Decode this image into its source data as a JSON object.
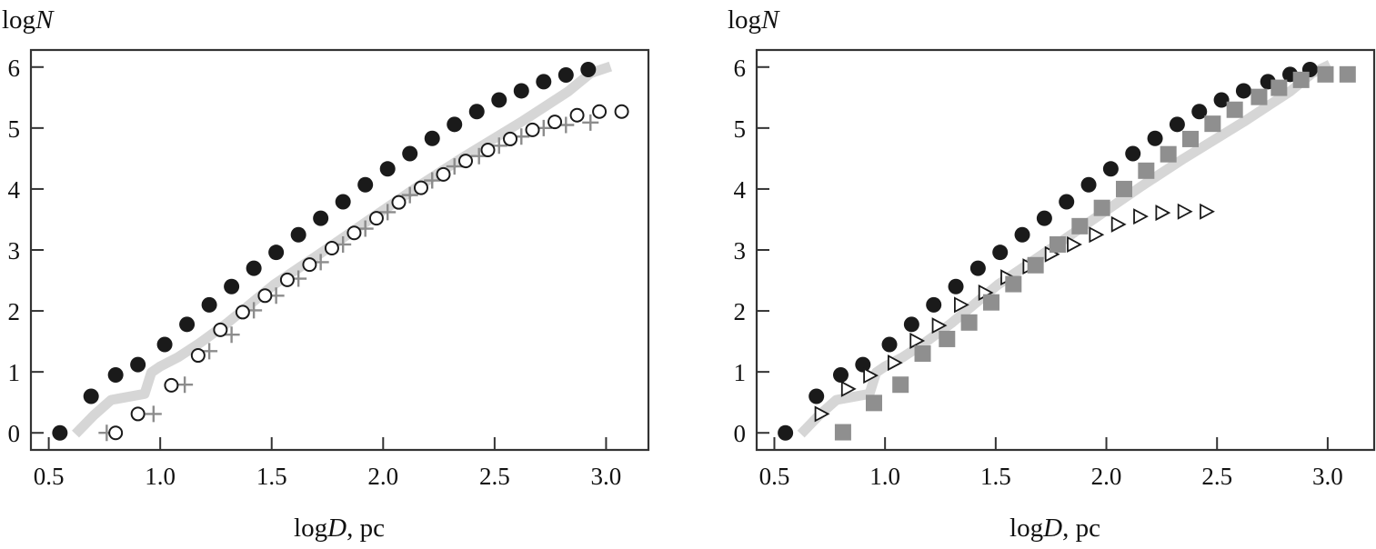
{
  "chart_data": [
    {
      "type": "scatter",
      "panel": "left",
      "title": "",
      "xlabel": {
        "prefix": "log",
        "var": "D",
        "suffix": ", pc"
      },
      "ylabel": {
        "prefix": "log",
        "var": "N"
      },
      "xlim": [
        0.42,
        3.19
      ],
      "ylim": [
        -0.28,
        6.28
      ],
      "xticks": [
        0.5,
        1.0,
        1.5,
        2.0,
        2.5,
        3.0
      ],
      "xtick_labels": [
        "0.5",
        "1.0",
        "1.5",
        "2.0",
        "2.5",
        "3.0"
      ],
      "yticks": [
        0,
        1,
        2,
        3,
        4,
        5,
        6
      ],
      "ytick_labels": [
        "0",
        "1",
        "2",
        "3",
        "4",
        "5",
        "6"
      ],
      "grid": false,
      "legend": "none",
      "series": [
        {
          "name": "reference-curve",
          "marker": "line",
          "color": "#d6d6d6",
          "x": [
            0.62,
            0.7,
            0.78,
            0.93,
            0.96,
            1.0,
            1.08,
            1.18,
            1.3,
            1.51,
            1.72,
            1.92,
            2.16,
            2.35,
            2.62,
            2.83,
            2.93,
            3.02
          ],
          "y": [
            -0.02,
            0.28,
            0.54,
            0.64,
            0.99,
            1.09,
            1.24,
            1.48,
            1.8,
            2.43,
            2.95,
            3.45,
            4.05,
            4.5,
            5.1,
            5.6,
            5.9,
            6.01
          ]
        },
        {
          "name": "filled-circles",
          "marker": "filled-circle",
          "color": "#1a1a1a",
          "x": [
            0.55,
            0.69,
            0.8,
            0.9,
            1.02,
            1.12,
            1.22,
            1.32,
            1.42,
            1.52,
            1.62,
            1.72,
            1.82,
            1.92,
            2.02,
            2.12,
            2.22,
            2.32,
            2.42,
            2.52,
            2.62,
            2.72,
            2.82,
            2.92
          ],
          "y": [
            0.0,
            0.6,
            0.95,
            1.12,
            1.45,
            1.78,
            2.1,
            2.4,
            2.7,
            2.96,
            3.25,
            3.52,
            3.79,
            4.07,
            4.33,
            4.58,
            4.83,
            5.06,
            5.27,
            5.46,
            5.61,
            5.76,
            5.87,
            5.96
          ]
        },
        {
          "name": "open-circles",
          "marker": "open-circle",
          "color": "#1a1a1a",
          "x": [
            0.8,
            0.9,
            1.05,
            1.17,
            1.27,
            1.37,
            1.47,
            1.57,
            1.67,
            1.77,
            1.87,
            1.97,
            2.07,
            2.17,
            2.27,
            2.37,
            2.47,
            2.57,
            2.67,
            2.77,
            2.87,
            2.97,
            3.07
          ],
          "y": [
            0.0,
            0.31,
            0.78,
            1.27,
            1.69,
            1.98,
            2.25,
            2.51,
            2.76,
            3.03,
            3.28,
            3.52,
            3.78,
            4.02,
            4.24,
            4.46,
            4.64,
            4.82,
            4.97,
            5.1,
            5.21,
            5.27,
            5.27
          ]
        },
        {
          "name": "crosses",
          "marker": "plus",
          "color": "#8c8c8c",
          "x": [
            0.76,
            0.97,
            1.11,
            1.22,
            1.32,
            1.42,
            1.52,
            1.62,
            1.72,
            1.82,
            1.92,
            2.02,
            2.12,
            2.22,
            2.32,
            2.43,
            2.52,
            2.62,
            2.72,
            2.82,
            2.93
          ],
          "y": [
            0.0,
            0.31,
            0.79,
            1.34,
            1.61,
            2.01,
            2.25,
            2.53,
            2.8,
            3.09,
            3.35,
            3.62,
            3.9,
            4.14,
            4.37,
            4.54,
            4.71,
            4.86,
            5.0,
            5.05,
            5.09
          ]
        }
      ]
    },
    {
      "type": "scatter",
      "panel": "right",
      "title": "",
      "xlabel": {
        "prefix": "log",
        "var": "D",
        "suffix": ", pc"
      },
      "ylabel": {
        "prefix": "log",
        "var": "N"
      },
      "xlim": [
        0.42,
        3.21
      ],
      "ylim": [
        -0.28,
        6.28
      ],
      "xticks": [
        0.5,
        1.0,
        1.5,
        2.0,
        2.5,
        3.0
      ],
      "xtick_labels": [
        "0.5",
        "1.0",
        "1.5",
        "2.0",
        "2.5",
        "3.0"
      ],
      "yticks": [
        0,
        1,
        2,
        3,
        4,
        5,
        6
      ],
      "ytick_labels": [
        "0",
        "1",
        "2",
        "3",
        "4",
        "5",
        "6"
      ],
      "grid": false,
      "legend": "none",
      "series": [
        {
          "name": "reference-curve",
          "marker": "line",
          "color": "#d6d6d6",
          "x": [
            0.62,
            0.7,
            0.78,
            0.93,
            0.96,
            1.0,
            1.08,
            1.18,
            1.3,
            1.51,
            1.72,
            1.92,
            2.16,
            2.35,
            2.62,
            2.83,
            2.93,
            3.01
          ],
          "y": [
            -0.02,
            0.28,
            0.54,
            0.64,
            0.99,
            1.09,
            1.24,
            1.48,
            1.8,
            2.43,
            2.95,
            3.45,
            4.05,
            4.5,
            5.1,
            5.6,
            5.9,
            6.04
          ]
        },
        {
          "name": "filled-circles",
          "marker": "filled-circle",
          "color": "#1a1a1a",
          "x": [
            0.55,
            0.69,
            0.8,
            0.9,
            1.02,
            1.12,
            1.22,
            1.32,
            1.42,
            1.52,
            1.62,
            1.72,
            1.82,
            1.92,
            2.02,
            2.12,
            2.22,
            2.32,
            2.42,
            2.52,
            2.62,
            2.73,
            2.83,
            2.92
          ],
          "y": [
            0.0,
            0.6,
            0.95,
            1.12,
            1.45,
            1.78,
            2.1,
            2.4,
            2.7,
            2.96,
            3.25,
            3.52,
            3.79,
            4.07,
            4.33,
            4.58,
            4.83,
            5.06,
            5.27,
            5.46,
            5.61,
            5.76,
            5.88,
            5.96
          ]
        },
        {
          "name": "open-triangles",
          "marker": "open-triangle-right",
          "color": "#1a1a1a",
          "x": [
            0.71,
            0.83,
            0.93,
            1.04,
            1.14,
            1.24,
            1.34,
            1.45,
            1.55,
            1.65,
            1.75,
            1.85,
            1.95,
            2.05,
            2.15,
            2.25,
            2.35,
            2.45
          ],
          "y": [
            0.31,
            0.72,
            0.94,
            1.15,
            1.51,
            1.76,
            2.1,
            2.3,
            2.55,
            2.73,
            2.93,
            3.09,
            3.25,
            3.42,
            3.55,
            3.61,
            3.63,
            3.63
          ]
        },
        {
          "name": "gray-squares",
          "marker": "filled-square",
          "color": "#8f8f8f",
          "x": [
            0.81,
            0.95,
            1.07,
            1.17,
            1.28,
            1.38,
            1.48,
            1.58,
            1.68,
            1.78,
            1.88,
            1.98,
            2.08,
            2.18,
            2.28,
            2.38,
            2.48,
            2.58,
            2.69,
            2.78,
            2.88,
            2.99,
            3.09
          ],
          "y": [
            0.01,
            0.49,
            0.79,
            1.3,
            1.54,
            1.81,
            2.14,
            2.44,
            2.75,
            3.09,
            3.39,
            3.69,
            4.0,
            4.3,
            4.57,
            4.82,
            5.07,
            5.3,
            5.51,
            5.66,
            5.79,
            5.88,
            5.88
          ]
        }
      ]
    }
  ]
}
